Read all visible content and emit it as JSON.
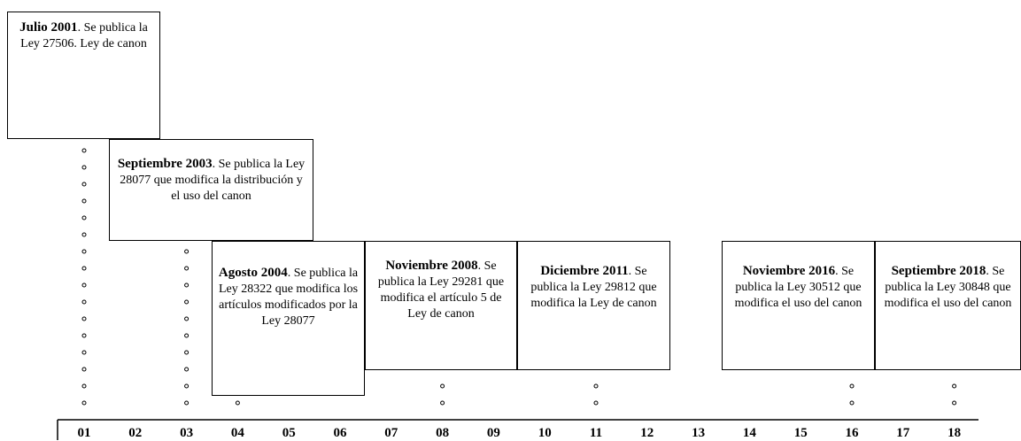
{
  "events": [
    {
      "date": "Julio 2001",
      "text": ". Se publica la Ley 27506. Ley de canon"
    },
    {
      "date": "Septiembre 2003",
      "text": ". Se publica la Ley 28077 que modifica la distribución y el uso del canon"
    },
    {
      "date": "Agosto 2004",
      "text": ". Se publica la Ley 28322 que modifica los artículos modificados por la Ley 28077"
    },
    {
      "date": "Noviembre 2008",
      "text": ". Se publica la Ley 29281 que modifica el artículo 5 de  Ley de canon"
    },
    {
      "date": "Diciembre 2011",
      "text": ". Se publica la Ley 29812 que modifica la Ley de canon"
    },
    {
      "date": "Noviembre 2016",
      "text": ". Se publica la Ley 30512 que modifica el uso del canon"
    },
    {
      "date": "Septiembre 2018",
      "text": ". Se publica la Ley 30848 que modifica el uso del canon"
    }
  ],
  "axis": [
    "01",
    "02",
    "03",
    "04",
    "05",
    "06",
    "07",
    "08",
    "09",
    "10",
    "11",
    "12",
    "13",
    "14",
    "15",
    "16",
    "17",
    "18"
  ]
}
